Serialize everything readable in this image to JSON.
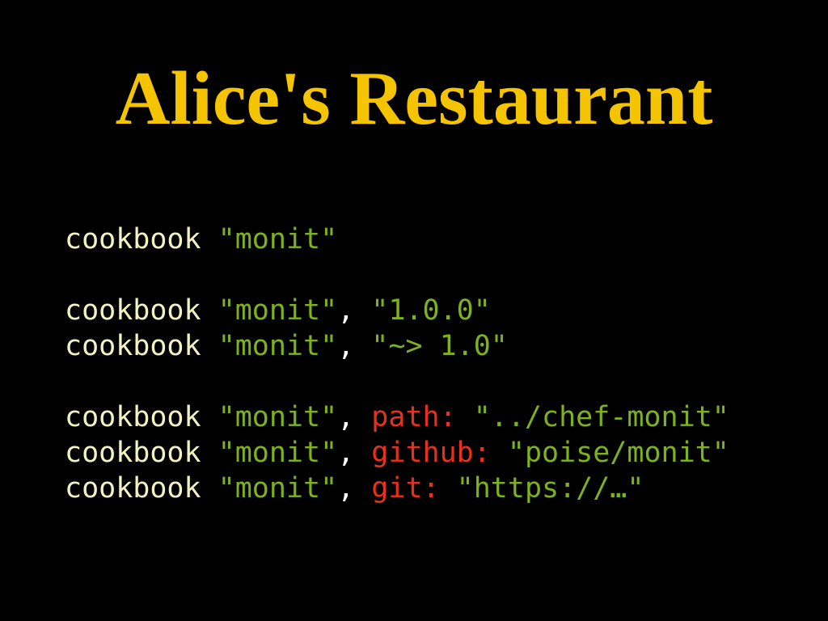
{
  "title": "Alice's Restaurant",
  "code": [
    [
      [
        {
          "text": "cookbook",
          "color": "#f2f2c4"
        },
        {
          "text": "\"monit\"",
          "color": "#7db21e"
        }
      ]
    ],
    [
      [
        {
          "text": "cookbook",
          "color": "#f2f2c4"
        },
        {
          "text": "\"monit\"",
          "color": "#7db21e"
        },
        {
          "text": ",",
          "color": "#ffffff"
        },
        {
          "text": "\"1.0.0\"",
          "color": "#7db21e"
        }
      ],
      [
        {
          "text": "cookbook",
          "color": "#f2f2c4"
        },
        {
          "text": "\"monit\"",
          "color": "#7db21e"
        },
        {
          "text": ",",
          "color": "#ffffff"
        },
        {
          "text": "\"~> 1.0\"",
          "color": "#7db21e"
        }
      ]
    ],
    [
      [
        {
          "text": "cookbook",
          "color": "#f2f2c4"
        },
        {
          "text": "\"monit\"",
          "color": "#7db21e"
        },
        {
          "text": ",",
          "color": "#ffffff"
        },
        {
          "text": "path:",
          "color": "#e8301c"
        },
        {
          "text": "\"../chef-monit\"",
          "color": "#7db21e"
        }
      ],
      [
        {
          "text": "cookbook",
          "color": "#f2f2c4"
        },
        {
          "text": "\"monit\"",
          "color": "#7db21e"
        },
        {
          "text": ",",
          "color": "#ffffff"
        },
        {
          "text": "github:",
          "color": "#e8301c"
        },
        {
          "text": "\"poise/monit\"",
          "color": "#7db21e"
        }
      ],
      [
        {
          "text": "cookbook",
          "color": "#f2f2c4"
        },
        {
          "text": "\"monit\"",
          "color": "#7db21e"
        },
        {
          "text": ",",
          "color": "#ffffff"
        },
        {
          "text": "git:",
          "color": "#e8301c"
        },
        {
          "text": "\"https://…\"",
          "color": "#7db21e"
        }
      ]
    ]
  ]
}
